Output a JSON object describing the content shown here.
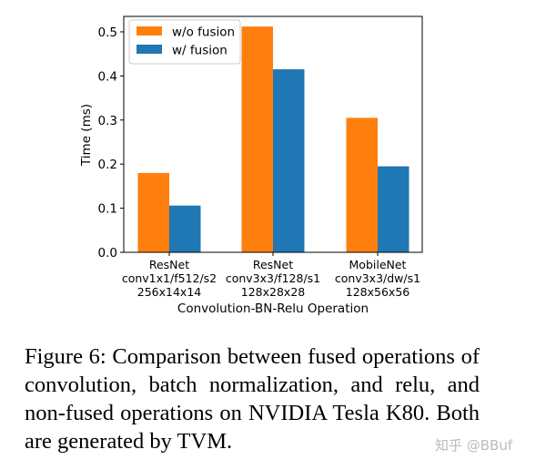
{
  "chart_data": {
    "type": "bar",
    "categories": [
      "ResNet\nconv1x1/f512/s2\n256x14x14",
      "ResNet\nconv3x3/f128/s1\n128x28x28",
      "MobileNet\nconv3x3/dw/s1\n128x56x56"
    ],
    "series": [
      {
        "name": "w/o fusion",
        "color": "#ff7f0e",
        "values": [
          0.18,
          0.512,
          0.305
        ]
      },
      {
        "name": "w/ fusion",
        "color": "#1f77b4",
        "values": [
          0.106,
          0.415,
          0.195
        ]
      }
    ],
    "xlabel": "Convolution-BN-Relu Operation",
    "ylabel": "Time (ms)",
    "ylim": [
      0,
      0.535
    ],
    "yticks": [
      "0.0",
      "0.1",
      "0.2",
      "0.3",
      "0.4",
      "0.5"
    ],
    "legend": "top-left",
    "grid": false
  },
  "caption": "Figure 6:  Comparison between fused operations of convolution, batch normalization, and relu, and non-fused operations on NVIDIA Tesla K80. Both are generated by TVM.",
  "watermark": "知乎 @BBuf"
}
